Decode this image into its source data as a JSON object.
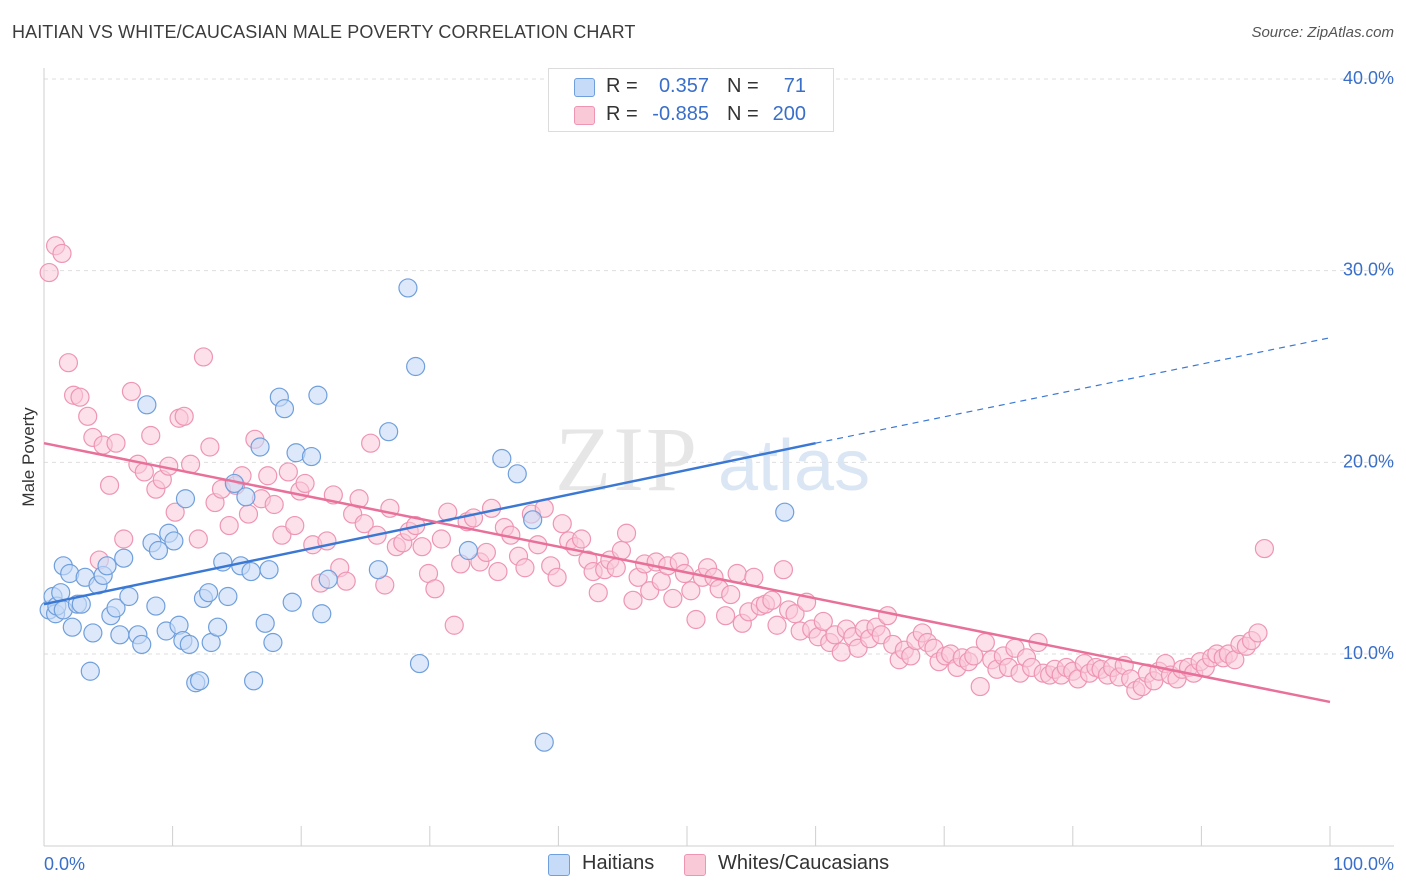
{
  "header": {
    "title": "HAITIAN VS WHITE/CAUCASIAN MALE POVERTY CORRELATION CHART",
    "source": "Source: ZipAtlas.com"
  },
  "watermark": {
    "zip": "ZIP",
    "atlas": "atlas"
  },
  "legend": {
    "rows": [
      {
        "r_label": "R =",
        "r_value": "0.357",
        "n_label": "N =",
        "n_value": "71",
        "color": "#a9c8f0"
      },
      {
        "r_label": "R =",
        "r_value": "-0.885",
        "n_label": "N =",
        "n_value": "200",
        "color": "#f6b3c8"
      }
    ]
  },
  "bottom_legend": [
    {
      "label": "Haitians",
      "color": "#a9c8f0"
    },
    {
      "label": "Whites/Caucasians",
      "color": "#f6b3c8"
    }
  ],
  "colors": {
    "blue": "#3a78d4",
    "blue_fill": "#c6dbf7",
    "blue_stroke": "#6f9fdc",
    "pink": "#e8709a",
    "pink_fill": "#f9c9d8",
    "pink_stroke": "#ee95b3",
    "axis_text_blue": "#3a6fc9",
    "grid": "#dedede"
  },
  "chart_data": {
    "type": "scatter",
    "title": "HAITIAN VS WHITE/CAUCASIAN MALE POVERTY CORRELATION CHART",
    "xlabel": "",
    "ylabel": "Male Poverty",
    "xlim": [
      0,
      100
    ],
    "ylim": [
      0,
      42
    ],
    "x_tick_labels": [
      "0.0%",
      "100.0%"
    ],
    "y_ticks": [
      10,
      20,
      30,
      40
    ],
    "y_tick_labels": [
      "10.0%",
      "20.0%",
      "30.0%",
      "40.0%"
    ],
    "grid": true,
    "legend_position": "top-center",
    "series": [
      {
        "name": "Haitians",
        "R": 0.357,
        "N": 71,
        "trend": {
          "x": [
            0,
            60
          ],
          "y": [
            12.6,
            21.0
          ],
          "dashed_extension_to_x": 100,
          "dashed_end_y": 26.5
        },
        "points": [
          [
            0.4,
            12.3
          ],
          [
            0.7,
            13.0
          ],
          [
            0.9,
            12.1
          ],
          [
            1.0,
            12.5
          ],
          [
            1.3,
            13.2
          ],
          [
            1.5,
            12.3
          ],
          [
            1.5,
            14.6
          ],
          [
            2.0,
            14.2
          ],
          [
            2.2,
            11.4
          ],
          [
            2.6,
            12.6
          ],
          [
            2.9,
            12.6
          ],
          [
            3.2,
            14.0
          ],
          [
            3.6,
            9.1
          ],
          [
            3.8,
            11.1
          ],
          [
            4.2,
            13.6
          ],
          [
            4.6,
            14.1
          ],
          [
            4.9,
            14.6
          ],
          [
            5.2,
            12.0
          ],
          [
            5.6,
            12.4
          ],
          [
            5.9,
            11.0
          ],
          [
            6.2,
            15.0
          ],
          [
            6.6,
            13.0
          ],
          [
            7.3,
            11.0
          ],
          [
            7.6,
            10.5
          ],
          [
            8.0,
            23.0
          ],
          [
            8.4,
            15.8
          ],
          [
            8.7,
            12.5
          ],
          [
            8.9,
            15.4
          ],
          [
            9.5,
            11.2
          ],
          [
            9.7,
            16.3
          ],
          [
            10.1,
            15.9
          ],
          [
            10.5,
            11.5
          ],
          [
            10.8,
            10.7
          ],
          [
            11.0,
            18.1
          ],
          [
            11.3,
            10.5
          ],
          [
            11.8,
            8.5
          ],
          [
            12.1,
            8.6
          ],
          [
            12.4,
            12.9
          ],
          [
            12.8,
            13.2
          ],
          [
            13.0,
            10.6
          ],
          [
            13.5,
            11.4
          ],
          [
            13.9,
            14.8
          ],
          [
            14.3,
            13.0
          ],
          [
            14.8,
            18.9
          ],
          [
            15.3,
            14.6
          ],
          [
            15.7,
            18.2
          ],
          [
            16.1,
            14.3
          ],
          [
            16.3,
            8.6
          ],
          [
            16.8,
            20.8
          ],
          [
            17.2,
            11.6
          ],
          [
            17.5,
            14.4
          ],
          [
            17.8,
            10.6
          ],
          [
            18.3,
            23.4
          ],
          [
            18.7,
            22.8
          ],
          [
            19.3,
            12.7
          ],
          [
            19.6,
            20.5
          ],
          [
            20.8,
            20.3
          ],
          [
            21.3,
            23.5
          ],
          [
            21.6,
            12.1
          ],
          [
            22.1,
            13.9
          ],
          [
            26.0,
            14.4
          ],
          [
            26.8,
            21.6
          ],
          [
            28.3,
            29.1
          ],
          [
            28.9,
            25.0
          ],
          [
            29.2,
            9.5
          ],
          [
            33.0,
            15.4
          ],
          [
            35.6,
            20.2
          ],
          [
            36.8,
            19.4
          ],
          [
            38.0,
            17.0
          ],
          [
            38.9,
            5.4
          ],
          [
            57.6,
            17.4
          ]
        ]
      },
      {
        "name": "Whites/Caucasians",
        "R": -0.885,
        "N": 200,
        "trend": {
          "x": [
            0,
            100
          ],
          "y": [
            21.0,
            7.5
          ]
        },
        "points": [
          [
            0.4,
            29.9
          ],
          [
            0.9,
            31.3
          ],
          [
            1.4,
            30.9
          ],
          [
            1.9,
            25.2
          ],
          [
            2.3,
            23.5
          ],
          [
            2.8,
            23.4
          ],
          [
            3.4,
            22.4
          ],
          [
            3.8,
            21.3
          ],
          [
            4.3,
            14.9
          ],
          [
            4.6,
            20.9
          ],
          [
            5.1,
            18.8
          ],
          [
            5.6,
            21.0
          ],
          [
            6.2,
            16.0
          ],
          [
            6.8,
            23.7
          ],
          [
            7.3,
            19.9
          ],
          [
            7.8,
            19.5
          ],
          [
            8.3,
            21.4
          ],
          [
            8.7,
            18.6
          ],
          [
            9.2,
            19.1
          ],
          [
            9.7,
            19.8
          ],
          [
            10.2,
            17.4
          ],
          [
            10.5,
            22.3
          ],
          [
            10.9,
            22.4
          ],
          [
            11.4,
            19.9
          ],
          [
            12.0,
            16.0
          ],
          [
            12.4,
            25.5
          ],
          [
            12.9,
            20.8
          ],
          [
            13.3,
            17.9
          ],
          [
            13.8,
            18.6
          ],
          [
            14.4,
            16.7
          ],
          [
            14.9,
            18.8
          ],
          [
            15.4,
            19.3
          ],
          [
            15.9,
            17.3
          ],
          [
            16.4,
            21.2
          ],
          [
            16.9,
            18.1
          ],
          [
            17.4,
            19.3
          ],
          [
            17.9,
            17.8
          ],
          [
            18.5,
            16.2
          ],
          [
            19.0,
            19.5
          ],
          [
            19.5,
            16.7
          ],
          [
            19.9,
            18.5
          ],
          [
            20.3,
            18.9
          ],
          [
            20.9,
            15.7
          ],
          [
            21.5,
            13.7
          ],
          [
            22.0,
            15.9
          ],
          [
            22.5,
            18.3
          ],
          [
            23.0,
            14.5
          ],
          [
            23.5,
            13.8
          ],
          [
            24.0,
            17.3
          ],
          [
            24.5,
            18.1
          ],
          [
            24.9,
            16.8
          ],
          [
            25.4,
            21.0
          ],
          [
            25.9,
            16.2
          ],
          [
            26.5,
            13.6
          ],
          [
            26.9,
            17.6
          ],
          [
            27.4,
            15.6
          ],
          [
            27.9,
            15.8
          ],
          [
            28.4,
            16.4
          ],
          [
            28.9,
            16.7
          ],
          [
            29.4,
            15.6
          ],
          [
            29.9,
            14.2
          ],
          [
            30.4,
            13.4
          ],
          [
            30.9,
            16.0
          ],
          [
            31.4,
            17.4
          ],
          [
            31.9,
            11.5
          ],
          [
            32.4,
            14.7
          ],
          [
            32.9,
            16.9
          ],
          [
            33.4,
            17.1
          ],
          [
            33.9,
            14.8
          ],
          [
            34.4,
            15.3
          ],
          [
            34.8,
            17.6
          ],
          [
            35.3,
            14.3
          ],
          [
            35.8,
            16.6
          ],
          [
            36.3,
            16.2
          ],
          [
            36.9,
            15.1
          ],
          [
            37.4,
            14.5
          ],
          [
            37.9,
            17.3
          ],
          [
            38.4,
            15.7
          ],
          [
            38.9,
            17.6
          ],
          [
            39.4,
            14.6
          ],
          [
            39.9,
            14.0
          ],
          [
            40.3,
            16.8
          ],
          [
            40.8,
            15.9
          ],
          [
            41.3,
            15.6
          ],
          [
            41.8,
            16.0
          ],
          [
            42.3,
            14.9
          ],
          [
            42.7,
            14.3
          ],
          [
            43.1,
            13.2
          ],
          [
            43.6,
            14.4
          ],
          [
            44.0,
            14.9
          ],
          [
            44.5,
            14.5
          ],
          [
            44.9,
            15.4
          ],
          [
            45.3,
            16.3
          ],
          [
            45.8,
            12.8
          ],
          [
            46.2,
            14.0
          ],
          [
            46.7,
            14.7
          ],
          [
            47.1,
            13.3
          ],
          [
            47.6,
            14.8
          ],
          [
            48.0,
            13.8
          ],
          [
            48.5,
            14.6
          ],
          [
            48.9,
            12.9
          ],
          [
            49.4,
            14.8
          ],
          [
            49.8,
            14.2
          ],
          [
            50.3,
            13.3
          ],
          [
            50.7,
            11.8
          ],
          [
            51.2,
            14.0
          ],
          [
            51.6,
            14.5
          ],
          [
            52.1,
            14.0
          ],
          [
            52.5,
            13.4
          ],
          [
            53.0,
            12.0
          ],
          [
            53.4,
            13.1
          ],
          [
            53.9,
            14.2
          ],
          [
            54.3,
            11.6
          ],
          [
            54.8,
            12.2
          ],
          [
            55.2,
            14.0
          ],
          [
            55.7,
            12.5
          ],
          [
            56.1,
            12.6
          ],
          [
            56.6,
            12.8
          ],
          [
            57.0,
            11.5
          ],
          [
            57.5,
            14.4
          ],
          [
            57.9,
            12.3
          ],
          [
            58.4,
            12.1
          ],
          [
            58.8,
            11.2
          ],
          [
            59.3,
            12.7
          ],
          [
            59.7,
            11.3
          ],
          [
            60.2,
            10.9
          ],
          [
            60.6,
            11.7
          ],
          [
            61.1,
            10.6
          ],
          [
            61.5,
            11.0
          ],
          [
            62.0,
            10.1
          ],
          [
            62.4,
            11.3
          ],
          [
            62.9,
            10.9
          ],
          [
            63.3,
            10.3
          ],
          [
            63.8,
            11.3
          ],
          [
            64.2,
            10.8
          ],
          [
            64.7,
            11.4
          ],
          [
            65.1,
            11.0
          ],
          [
            65.6,
            12.0
          ],
          [
            66.0,
            10.5
          ],
          [
            66.5,
            9.7
          ],
          [
            66.9,
            10.2
          ],
          [
            67.4,
            9.9
          ],
          [
            67.8,
            10.7
          ],
          [
            68.3,
            11.1
          ],
          [
            68.7,
            10.6
          ],
          [
            69.2,
            10.3
          ],
          [
            69.6,
            9.6
          ],
          [
            70.1,
            9.9
          ],
          [
            70.5,
            10.0
          ],
          [
            71.0,
            9.3
          ],
          [
            71.4,
            9.8
          ],
          [
            71.9,
            9.6
          ],
          [
            72.3,
            9.9
          ],
          [
            72.8,
            8.3
          ],
          [
            73.2,
            10.6
          ],
          [
            73.7,
            9.7
          ],
          [
            74.1,
            9.2
          ],
          [
            74.6,
            9.9
          ],
          [
            75.0,
            9.3
          ],
          [
            75.5,
            10.3
          ],
          [
            75.9,
            9.0
          ],
          [
            76.4,
            9.8
          ],
          [
            76.8,
            9.3
          ],
          [
            77.3,
            10.6
          ],
          [
            77.7,
            9.0
          ],
          [
            78.2,
            8.9
          ],
          [
            78.6,
            9.2
          ],
          [
            79.1,
            8.9
          ],
          [
            79.5,
            9.3
          ],
          [
            80.0,
            9.1
          ],
          [
            80.4,
            8.7
          ],
          [
            80.9,
            9.5
          ],
          [
            81.3,
            9.0
          ],
          [
            81.8,
            9.3
          ],
          [
            82.2,
            9.2
          ],
          [
            82.7,
            8.9
          ],
          [
            83.1,
            9.3
          ],
          [
            83.6,
            8.8
          ],
          [
            84.0,
            9.4
          ],
          [
            84.5,
            8.7
          ],
          [
            84.9,
            8.1
          ],
          [
            85.4,
            8.3
          ],
          [
            85.8,
            9.0
          ],
          [
            86.3,
            8.6
          ],
          [
            86.7,
            9.1
          ],
          [
            87.2,
            9.5
          ],
          [
            87.6,
            8.9
          ],
          [
            88.1,
            8.7
          ],
          [
            88.5,
            9.2
          ],
          [
            89.0,
            9.3
          ],
          [
            89.4,
            9.0
          ],
          [
            89.9,
            9.6
          ],
          [
            90.3,
            9.3
          ],
          [
            90.8,
            9.8
          ],
          [
            91.2,
            10.0
          ],
          [
            91.7,
            9.8
          ],
          [
            92.1,
            10.0
          ],
          [
            92.6,
            9.7
          ],
          [
            93.0,
            10.5
          ],
          [
            93.5,
            10.4
          ],
          [
            93.9,
            10.7
          ],
          [
            94.4,
            11.1
          ],
          [
            94.9,
            15.5
          ]
        ]
      }
    ]
  }
}
